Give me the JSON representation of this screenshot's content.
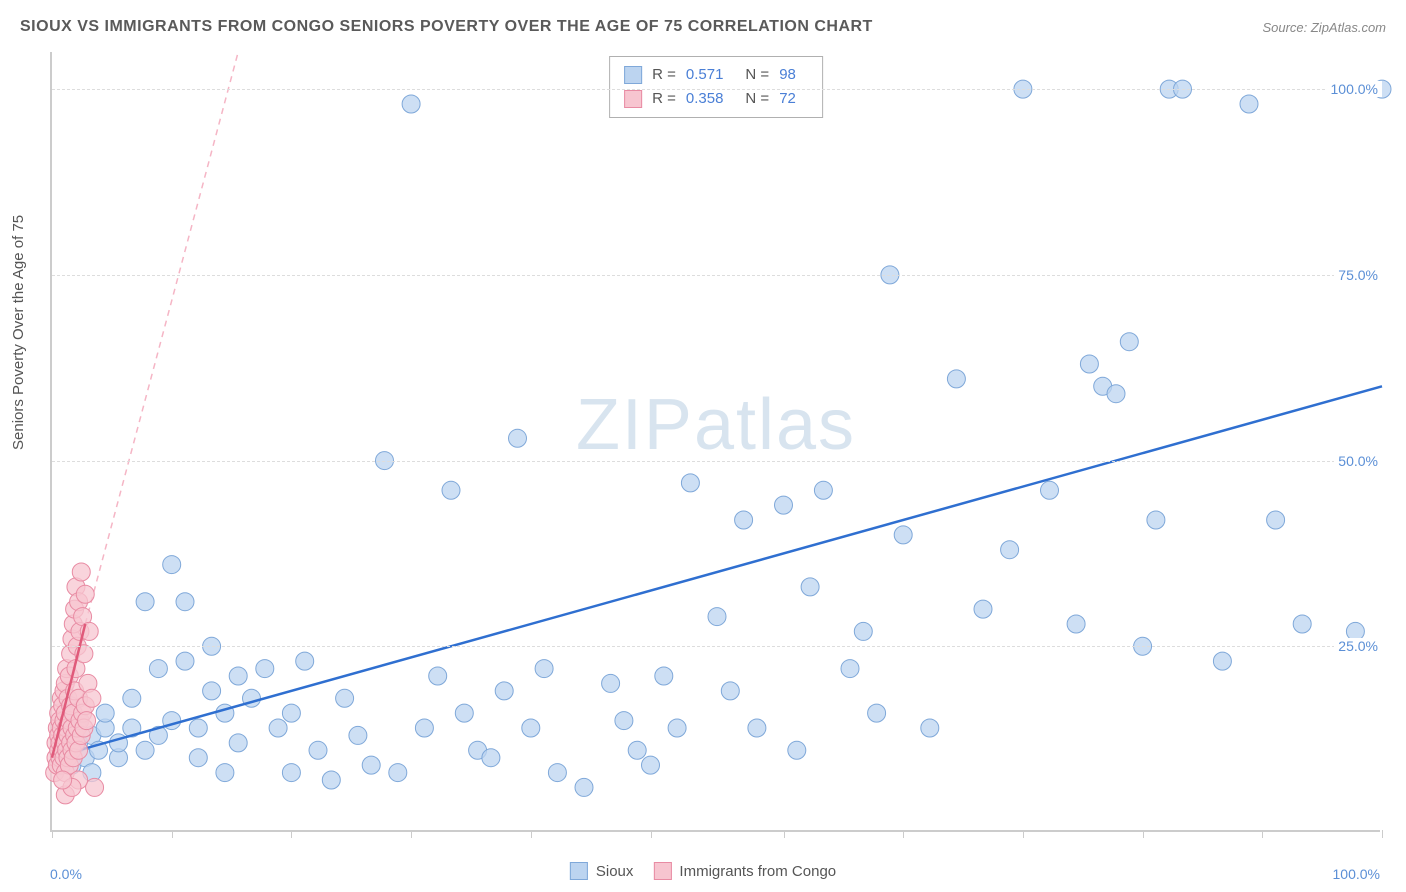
{
  "title": "SIOUX VS IMMIGRANTS FROM CONGO SENIORS POVERTY OVER THE AGE OF 75 CORRELATION CHART",
  "source": "Source: ZipAtlas.com",
  "y_axis_label": "Seniors Poverty Over the Age of 75",
  "watermark": "ZIPatlas",
  "chart": {
    "type": "scatter",
    "xlim": [
      0,
      100
    ],
    "ylim": [
      0,
      105
    ],
    "x_ticks": [
      0,
      9,
      18,
      27,
      36,
      45,
      55,
      64,
      73,
      82,
      91,
      100
    ],
    "y_gridlines": [
      25,
      50,
      75,
      100
    ],
    "y_tick_labels": [
      "25.0%",
      "50.0%",
      "75.0%",
      "100.0%"
    ],
    "x_min_label": "0.0%",
    "x_max_label": "100.0%",
    "background_color": "#ffffff",
    "grid_color": "#dddddd",
    "axis_color": "#cccccc",
    "tick_label_color": "#5b8fd6",
    "series": [
      {
        "name": "Sioux",
        "marker_fill": "#bcd4f0",
        "marker_stroke": "#7fa8d9",
        "marker_radius": 9,
        "marker_opacity": 0.75,
        "trend_line_color": "#2f6fd0",
        "trend_line_width": 2.5,
        "trend_line_dash": "none",
        "trend_start": [
          0,
          10
        ],
        "trend_end": [
          100,
          60
        ],
        "extrapolation_dash": "6,5",
        "r": "0.571",
        "n": "98",
        "points": [
          [
            1,
            11
          ],
          [
            1,
            14
          ],
          [
            1.5,
            9
          ],
          [
            2,
            12
          ],
          [
            2,
            15
          ],
          [
            2.5,
            10
          ],
          [
            3,
            13
          ],
          [
            3,
            8
          ],
          [
            3.5,
            11
          ],
          [
            4,
            14
          ],
          [
            4,
            16
          ],
          [
            5,
            10
          ],
          [
            5,
            12
          ],
          [
            6,
            14
          ],
          [
            6,
            18
          ],
          [
            7,
            11
          ],
          [
            7,
            31
          ],
          [
            8,
            13
          ],
          [
            8,
            22
          ],
          [
            9,
            36
          ],
          [
            9,
            15
          ],
          [
            10,
            31
          ],
          [
            10,
            23
          ],
          [
            11,
            14
          ],
          [
            11,
            10
          ],
          [
            12,
            19
          ],
          [
            12,
            25
          ],
          [
            13,
            16
          ],
          [
            13,
            8
          ],
          [
            14,
            21
          ],
          [
            14,
            12
          ],
          [
            15,
            18
          ],
          [
            16,
            22
          ],
          [
            17,
            14
          ],
          [
            18,
            8
          ],
          [
            18,
            16
          ],
          [
            19,
            23
          ],
          [
            20,
            11
          ],
          [
            21,
            7
          ],
          [
            22,
            18
          ],
          [
            23,
            13
          ],
          [
            24,
            9
          ],
          [
            25,
            50
          ],
          [
            26,
            8
          ],
          [
            27,
            98
          ],
          [
            28,
            14
          ],
          [
            29,
            21
          ],
          [
            30,
            46
          ],
          [
            31,
            16
          ],
          [
            32,
            11
          ],
          [
            33,
            10
          ],
          [
            34,
            19
          ],
          [
            35,
            53
          ],
          [
            36,
            14
          ],
          [
            37,
            22
          ],
          [
            38,
            8
          ],
          [
            40,
            6
          ],
          [
            42,
            20
          ],
          [
            43,
            15
          ],
          [
            44,
            11
          ],
          [
            45,
            9
          ],
          [
            46,
            21
          ],
          [
            47,
            14
          ],
          [
            48,
            47
          ],
          [
            50,
            29
          ],
          [
            51,
            19
          ],
          [
            52,
            42
          ],
          [
            53,
            14
          ],
          [
            55,
            44
          ],
          [
            56,
            11
          ],
          [
            57,
            33
          ],
          [
            58,
            46
          ],
          [
            60,
            22
          ],
          [
            61,
            27
          ],
          [
            63,
            75
          ],
          [
            64,
            40
          ],
          [
            66,
            14
          ],
          [
            68,
            61
          ],
          [
            70,
            30
          ],
          [
            72,
            38
          ],
          [
            73,
            100
          ],
          [
            75,
            46
          ],
          [
            77,
            28
          ],
          [
            78,
            63
          ],
          [
            79,
            60
          ],
          [
            80,
            59
          ],
          [
            81,
            66
          ],
          [
            82,
            25
          ],
          [
            83,
            42
          ],
          [
            84,
            100
          ],
          [
            85,
            100
          ],
          [
            88,
            23
          ],
          [
            90,
            98
          ],
          [
            92,
            42
          ],
          [
            94,
            28
          ],
          [
            98,
            27
          ],
          [
            100,
            100
          ],
          [
            62,
            16
          ]
        ]
      },
      {
        "name": "Immigrants from Congo",
        "marker_fill": "#f7c5d0",
        "marker_stroke": "#e88ba3",
        "marker_radius": 9,
        "marker_opacity": 0.75,
        "trend_line_color": "#e05a7a",
        "trend_line_width": 2.5,
        "trend_line_dash": "none",
        "trend_start": [
          0,
          10
        ],
        "trend_end": [
          2.5,
          28
        ],
        "extrapolation_color": "#f5b5c5",
        "extrapolation_dash": "6,5",
        "extrapolation_end": [
          14,
          105
        ],
        "r": "0.358",
        "n": "72",
        "points": [
          [
            0.2,
            8
          ],
          [
            0.3,
            10
          ],
          [
            0.3,
            12
          ],
          [
            0.4,
            9
          ],
          [
            0.4,
            14
          ],
          [
            0.5,
            11
          ],
          [
            0.5,
            13
          ],
          [
            0.5,
            16
          ],
          [
            0.6,
            10
          ],
          [
            0.6,
            12
          ],
          [
            0.6,
            15
          ],
          [
            0.7,
            9
          ],
          [
            0.7,
            14
          ],
          [
            0.7,
            18
          ],
          [
            0.8,
            11
          ],
          [
            0.8,
            13
          ],
          [
            0.8,
            17
          ],
          [
            0.9,
            10
          ],
          [
            0.9,
            15
          ],
          [
            0.9,
            19
          ],
          [
            1.0,
            8
          ],
          [
            1.0,
            12
          ],
          [
            1.0,
            16
          ],
          [
            1.0,
            20
          ],
          [
            1.1,
            11
          ],
          [
            1.1,
            14
          ],
          [
            1.1,
            22
          ],
          [
            1.2,
            10
          ],
          [
            1.2,
            13
          ],
          [
            1.2,
            18
          ],
          [
            1.3,
            9
          ],
          [
            1.3,
            15
          ],
          [
            1.3,
            21
          ],
          [
            1.4,
            12
          ],
          [
            1.4,
            17
          ],
          [
            1.4,
            24
          ],
          [
            1.5,
            11
          ],
          [
            1.5,
            14
          ],
          [
            1.5,
            26
          ],
          [
            1.6,
            10
          ],
          [
            1.6,
            16
          ],
          [
            1.6,
            28
          ],
          [
            1.7,
            13
          ],
          [
            1.7,
            19
          ],
          [
            1.7,
            30
          ],
          [
            1.8,
            12
          ],
          [
            1.8,
            22
          ],
          [
            1.8,
            33
          ],
          [
            1.9,
            14
          ],
          [
            1.9,
            25
          ],
          [
            2.0,
            11
          ],
          [
            2.0,
            18
          ],
          [
            2.0,
            31
          ],
          [
            2.1,
            15
          ],
          [
            2.1,
            27
          ],
          [
            2.2,
            13
          ],
          [
            2.2,
            35
          ],
          [
            2.3,
            16
          ],
          [
            2.3,
            29
          ],
          [
            2.4,
            14
          ],
          [
            2.4,
            24
          ],
          [
            2.5,
            17
          ],
          [
            2.5,
            32
          ],
          [
            2.6,
            15
          ],
          [
            2.7,
            20
          ],
          [
            2.8,
            27
          ],
          [
            3.0,
            18
          ],
          [
            3.2,
            6
          ],
          [
            1.0,
            5
          ],
          [
            2.0,
            7
          ],
          [
            1.5,
            6
          ],
          [
            0.8,
            7
          ]
        ]
      }
    ]
  },
  "stats_box": {
    "rows": [
      {
        "swatch_fill": "#bcd4f0",
        "swatch_stroke": "#7fa8d9",
        "r_label": "R =",
        "r_val": "0.571",
        "n_label": "N =",
        "n_val": "98"
      },
      {
        "swatch_fill": "#f7c5d0",
        "swatch_stroke": "#e88ba3",
        "r_label": "R =",
        "r_val": "0.358",
        "n_label": "N =",
        "n_val": "72"
      }
    ]
  },
  "bottom_legend": [
    {
      "swatch_fill": "#bcd4f0",
      "swatch_stroke": "#7fa8d9",
      "label": "Sioux"
    },
    {
      "swatch_fill": "#f7c5d0",
      "swatch_stroke": "#e88ba3",
      "label": "Immigrants from Congo"
    }
  ]
}
